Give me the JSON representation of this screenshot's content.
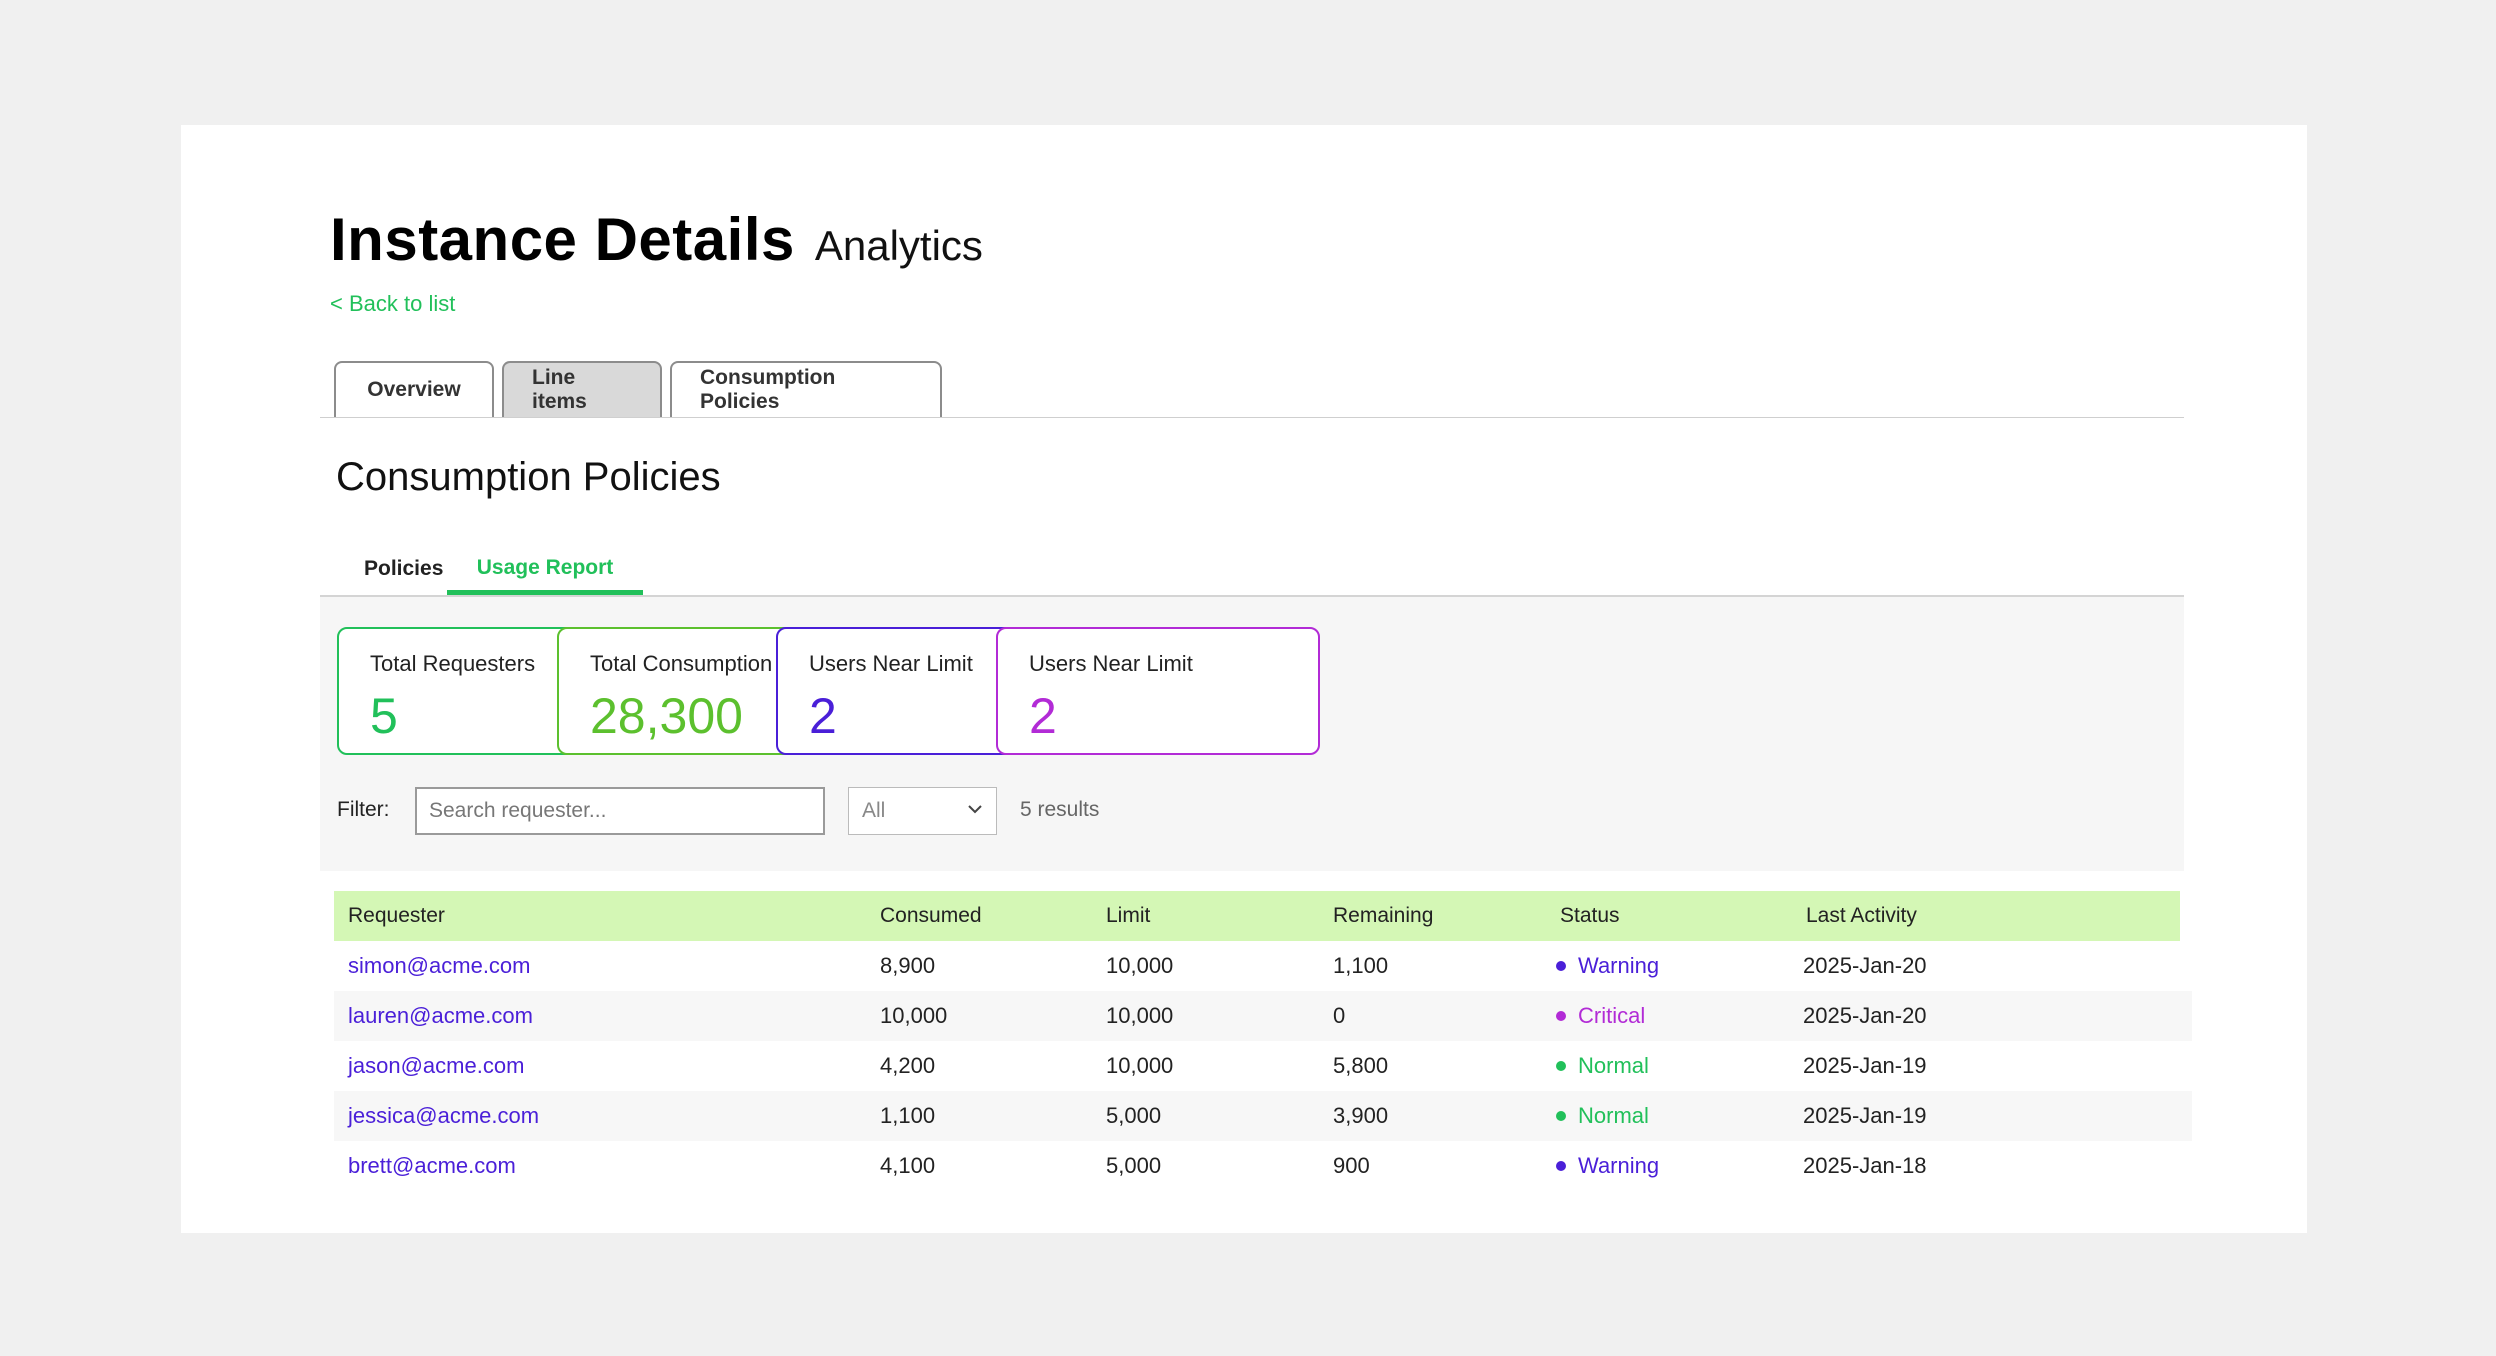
{
  "header": {
    "title": "Instance Details",
    "subtitle": "Analytics",
    "back_link": "< Back to list"
  },
  "tabs": [
    {
      "label": "Overview"
    },
    {
      "label": "Line items"
    },
    {
      "label": "Consumption Policies"
    }
  ],
  "section": {
    "title": "Consumption Policies"
  },
  "subtabs": [
    {
      "label": "Policies"
    },
    {
      "label": "Usage Report"
    }
  ],
  "stats": [
    {
      "label": "Total Requesters",
      "value": "5",
      "color": "#21c05a"
    },
    {
      "label": "Total Consumption",
      "value": "28,300",
      "color": "#5cc02e"
    },
    {
      "label": "Users Near Limit",
      "value": "2",
      "color": "#4a1fd8"
    },
    {
      "label": "Users Near Limit",
      "value": "2",
      "color": "#b22bd6"
    }
  ],
  "filter": {
    "label": "Filter:",
    "search_placeholder": "Search requester...",
    "select_value": "All",
    "results": "5 results"
  },
  "table": {
    "columns": [
      "Requester",
      "Consumed",
      "Limit",
      "Remaining",
      "Status",
      "Last Activity"
    ],
    "rows": [
      {
        "requester": "simon@acme.com",
        "consumed": "8,900",
        "limit": "10,000",
        "remaining": "1,100",
        "status": "Warning",
        "last_activity": "2025-Jan-20"
      },
      {
        "requester": "lauren@acme.com",
        "consumed": "10,000",
        "limit": "10,000",
        "remaining": "0",
        "status": "Critical",
        "last_activity": "2025-Jan-20"
      },
      {
        "requester": "jason@acme.com",
        "consumed": "4,200",
        "limit": "10,000",
        "remaining": "5,800",
        "status": "Normal",
        "last_activity": "2025-Jan-19"
      },
      {
        "requester": "jessica@acme.com",
        "consumed": "1,100",
        "limit": "5,000",
        "remaining": "3,900",
        "status": "Normal",
        "last_activity": "2025-Jan-19"
      },
      {
        "requester": "brett@acme.com",
        "consumed": "4,100",
        "limit": "5,000",
        "remaining": "900",
        "status": "Warning",
        "last_activity": "2025-Jan-18"
      }
    ]
  },
  "status_colors": {
    "Warning": "#4a1fd8",
    "Critical": "#b22bd6",
    "Normal": "#21c05a"
  },
  "icons": {
    "select_chevron": "chevron-down-icon"
  }
}
